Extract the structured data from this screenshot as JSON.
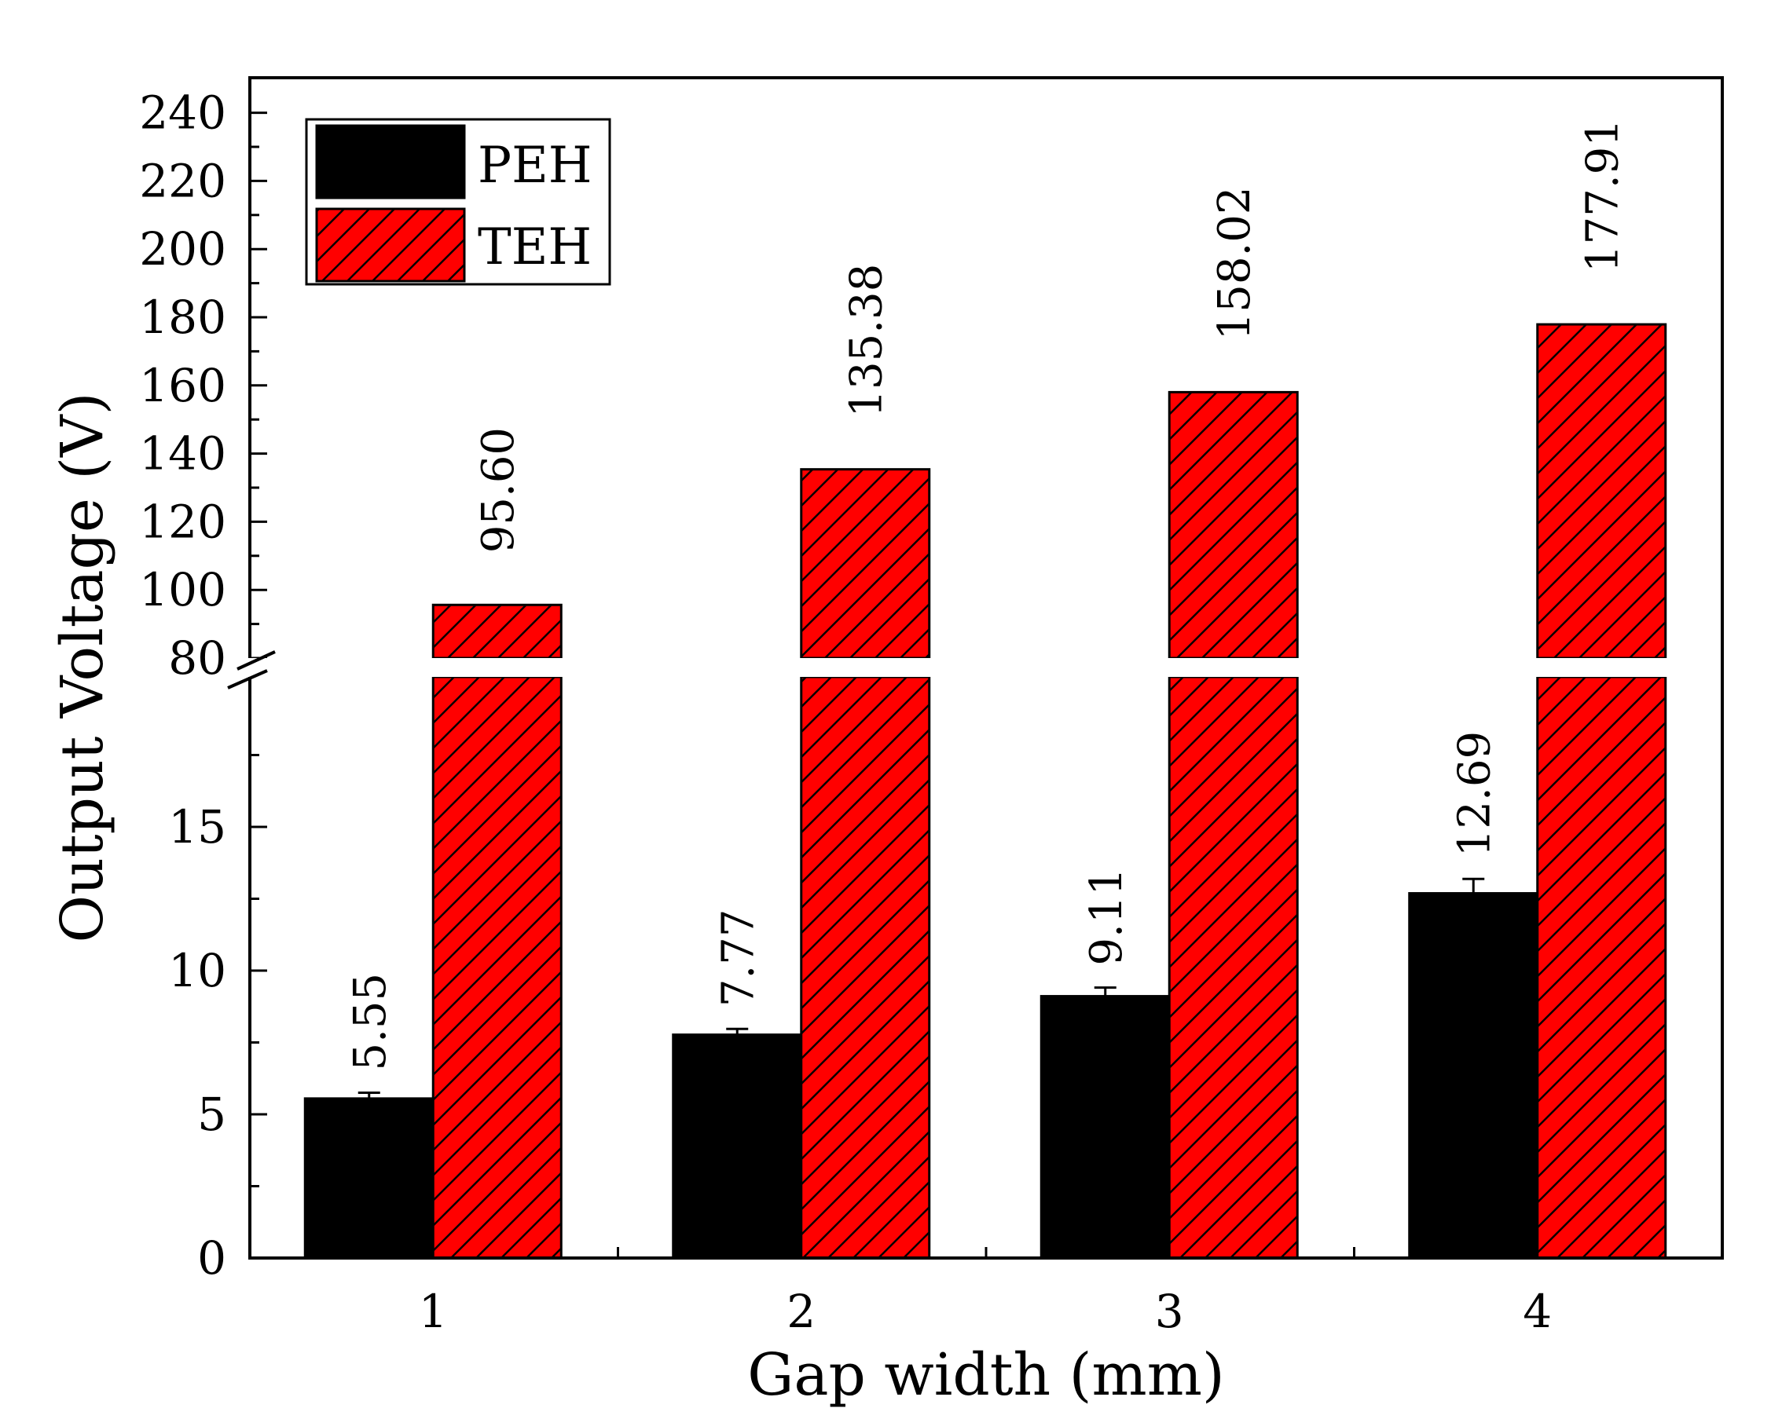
{
  "chart_data": {
    "type": "bar",
    "title": "",
    "xlabel": "Gap width (mm)",
    "ylabel": "Output Voltage (V)",
    "categories": [
      "1",
      "2",
      "3",
      "4"
    ],
    "series": [
      {
        "name": "PEH",
        "values": [
          5.55,
          7.77,
          9.11,
          12.69
        ],
        "labels": [
          "5.55",
          "7.77",
          "9.11",
          "12.69"
        ],
        "error": [
          0.2,
          0.2,
          0.3,
          0.5
        ],
        "color": "#000000",
        "pattern": "solid"
      },
      {
        "name": "TEH",
        "values": [
          95.6,
          135.38,
          158.02,
          177.91
        ],
        "labels": [
          "95.60",
          "135.38",
          "158.02",
          "177.91"
        ],
        "color": "#ff0000",
        "pattern": "diagonal-hatch"
      }
    ],
    "y_axis_break": {
      "lower_range": [
        0,
        19.5
      ],
      "upper_range": [
        80,
        245
      ]
    },
    "y_ticks_lower": [
      "0",
      "5",
      "10",
      "15"
    ],
    "y_ticks_upper": [
      "80",
      "100",
      "120",
      "140",
      "160",
      "180",
      "200",
      "220",
      "240"
    ],
    "legend_position": "top-left",
    "grid": false
  }
}
